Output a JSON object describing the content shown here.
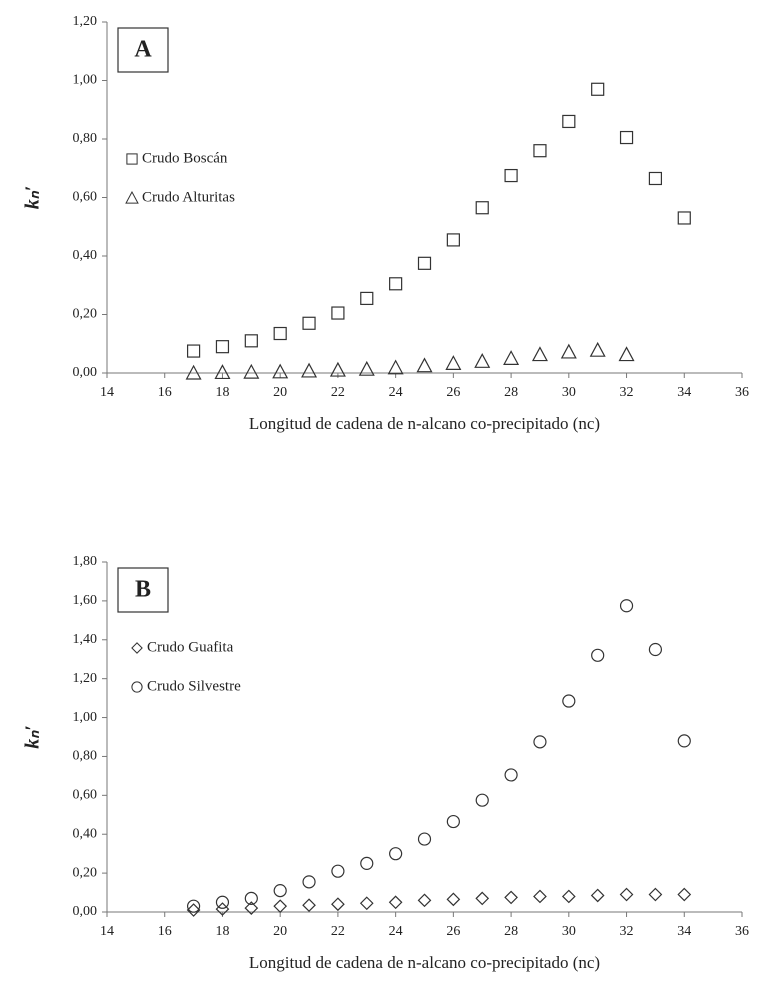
{
  "chart_data": [
    {
      "type": "scatter",
      "title": "A",
      "x_label": "Longitud de cadena de n-alcano co-precipitado (nc)",
      "y_label": "kₙ′",
      "xlim": [
        14,
        36
      ],
      "xticks": [
        14,
        16,
        18,
        20,
        22,
        24,
        26,
        28,
        30,
        32,
        34,
        36
      ],
      "ylim": [
        0,
        1.2
      ],
      "yticks": [
        {
          "value": 0,
          "label": "0,00"
        },
        {
          "value": 0.2,
          "label": "0,20"
        },
        {
          "value": 0.4,
          "label": "0,40"
        },
        {
          "value": 0.6,
          "label": "0,60"
        },
        {
          "value": 0.8,
          "label": "0,80"
        },
        {
          "value": 1.0,
          "label": "1,00"
        },
        {
          "value": 1.2,
          "label": "1,20"
        }
      ],
      "legend": "left",
      "series": [
        {
          "name": "Crudo Boscán",
          "marker": "square",
          "color": "#333333",
          "x": [
            17,
            18,
            19,
            20,
            21,
            22,
            23,
            24,
            25,
            26,
            27,
            28,
            29,
            30,
            31,
            32,
            33,
            34
          ],
          "values": [
            0.075,
            0.09,
            0.11,
            0.135,
            0.17,
            0.205,
            0.255,
            0.305,
            0.375,
            0.455,
            0.565,
            0.675,
            0.76,
            0.86,
            0.97,
            0.805,
            0.665,
            0.53
          ]
        },
        {
          "name": "Crudo Alturitas",
          "marker": "triangle",
          "color": "#333333",
          "x": [
            17,
            18,
            19,
            20,
            21,
            22,
            23,
            24,
            25,
            26,
            27,
            28,
            29,
            30,
            31,
            32
          ],
          "values": [
            0.0,
            0.002,
            0.003,
            0.004,
            0.007,
            0.01,
            0.013,
            0.018,
            0.025,
            0.033,
            0.04,
            0.05,
            0.063,
            0.072,
            0.078,
            0.063
          ]
        }
      ]
    },
    {
      "type": "scatter",
      "title": "B",
      "x_label": "Longitud de cadena de n-alcano co-precipitado (nc)",
      "y_label": "kₙ′",
      "xlim": [
        14,
        36
      ],
      "xticks": [
        14,
        16,
        18,
        20,
        22,
        24,
        26,
        28,
        30,
        32,
        34,
        36
      ],
      "ylim": [
        0,
        1.8
      ],
      "yticks": [
        {
          "value": 0,
          "label": "0,00"
        },
        {
          "value": 0.2,
          "label": "0,20"
        },
        {
          "value": 0.4,
          "label": "0,40"
        },
        {
          "value": 0.6,
          "label": "0,60"
        },
        {
          "value": 0.8,
          "label": "0,80"
        },
        {
          "value": 1.0,
          "label": "1,00"
        },
        {
          "value": 1.2,
          "label": "1,20"
        },
        {
          "value": 1.4,
          "label": "1,40"
        },
        {
          "value": 1.6,
          "label": "1,60"
        },
        {
          "value": 1.8,
          "label": "1,80"
        }
      ],
      "legend": "left",
      "series": [
        {
          "name": "Crudo Guafita",
          "marker": "diamond",
          "color": "#333333",
          "x": [
            17,
            18,
            19,
            20,
            21,
            22,
            23,
            24,
            25,
            26,
            27,
            28,
            29,
            30,
            31,
            32,
            33,
            34
          ],
          "values": [
            0.01,
            0.015,
            0.02,
            0.03,
            0.035,
            0.04,
            0.045,
            0.05,
            0.06,
            0.065,
            0.07,
            0.075,
            0.08,
            0.08,
            0.085,
            0.09,
            0.09,
            0.09
          ]
        },
        {
          "name": "Crudo Silvestre",
          "marker": "circle",
          "color": "#333333",
          "x": [
            17,
            18,
            19,
            20,
            21,
            22,
            23,
            24,
            25,
            26,
            27,
            28,
            29,
            30,
            31,
            32,
            33,
            34
          ],
          "values": [
            0.03,
            0.05,
            0.07,
            0.11,
            0.155,
            0.21,
            0.25,
            0.3,
            0.375,
            0.465,
            0.575,
            0.705,
            0.875,
            1.085,
            1.32,
            1.575,
            1.35,
            0.88
          ]
        }
      ]
    }
  ]
}
